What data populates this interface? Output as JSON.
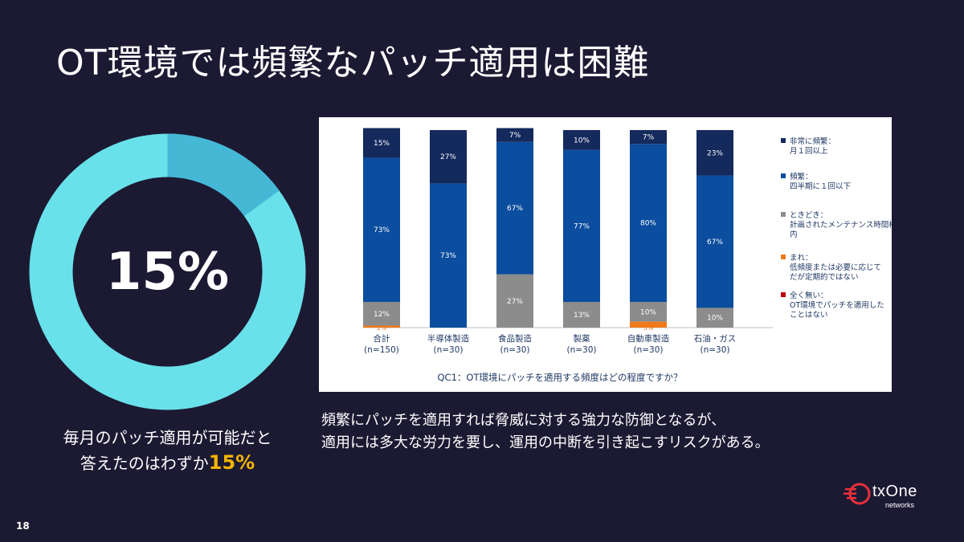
{
  "slide": {
    "title": "OT環境では頻繁なパッチ適用は困難",
    "page_number": "18"
  },
  "donut": {
    "percent_label": "15%",
    "value": 15,
    "colors": {
      "highlight": "#45b8d6",
      "base": "#69e1ea",
      "hole": "#1c1a33"
    }
  },
  "caption": {
    "line1": "毎月のパッチ適用が可能だと",
    "line2_prefix": "答えたのはわずか",
    "line2_highlight": "15%"
  },
  "note": {
    "line1": "頻繁にパッチを適用すれば脅威に対する強力な防御となるが、",
    "line2": "適用には多大な労力を要し、運用の中断を引き起こすリスクがある。"
  },
  "logo": {
    "name": "txOne",
    "sub": "networks",
    "color": "#e8303a"
  },
  "chart_data": {
    "type": "bar",
    "stacked": true,
    "question": "QC1：OT環境にパッチを適用する頻度はどの程度ですか？",
    "categories": [
      "合計",
      "半導体製造",
      "食品製造",
      "製薬",
      "自動車製造",
      "石油・ガス"
    ],
    "category_n": [
      "(n=150)",
      "(n=30)",
      "(n=30)",
      "(n=30)",
      "(n=30)",
      "(n=30)"
    ],
    "series": [
      {
        "name": "全く無い：OT環境でパッチを適用したことはない",
        "color": "#c00000",
        "values": [
          0,
          0,
          0,
          0,
          0,
          0
        ],
        "labels": [
          "",
          "",
          "",
          "",
          "",
          ""
        ]
      },
      {
        "name": "まれ：低頻度または必要に応じてだが定期的ではない",
        "color": "#f07a1a",
        "values": [
          1,
          0,
          0,
          0,
          3,
          0
        ],
        "labels": [
          "1%",
          "",
          "",
          "",
          "3%",
          ""
        ]
      },
      {
        "name": "ときどき：計画されたメンテナンス時間枠内",
        "color": "#8c8c8c",
        "values": [
          12,
          0,
          27,
          13,
          10,
          10
        ],
        "labels": [
          "12%",
          "",
          "27%",
          "13%",
          "10%",
          "10%"
        ]
      },
      {
        "name": "頻繁：四半期に１回以下",
        "color": "#0b4d9e",
        "values": [
          73,
          73,
          67,
          77,
          80,
          67
        ],
        "labels": [
          "73%",
          "73%",
          "67%",
          "77%",
          "80%",
          "67%"
        ]
      },
      {
        "name": "非常に頻繁：月１回以上",
        "color": "#14295c",
        "values": [
          15,
          27,
          7,
          10,
          7,
          23
        ],
        "labels": [
          "15%",
          "27%",
          "7%",
          "10%",
          "7%",
          "23%"
        ]
      }
    ],
    "legend": [
      {
        "title": "非常に頻繁：",
        "desc": [
          "月１回以上"
        ],
        "color": "#14295c"
      },
      {
        "title": "頻繁：",
        "desc": [
          "四半期に１回以下"
        ],
        "color": "#0b4d9e"
      },
      {
        "title": "ときどき：",
        "desc": [
          "計画されたメンテナンス時間枠",
          "内"
        ],
        "color": "#8c8c8c"
      },
      {
        "title": "まれ：",
        "desc": [
          "低頻度または必要に応じて",
          "だが定期的ではない"
        ],
        "color": "#f07a1a"
      },
      {
        "title": "全く無い：",
        "desc": [
          "OT環境でパッチを適用した",
          "ことはない"
        ],
        "color": "#c00000"
      }
    ],
    "legend_position": "right",
    "ylim": [
      0,
      100
    ]
  }
}
